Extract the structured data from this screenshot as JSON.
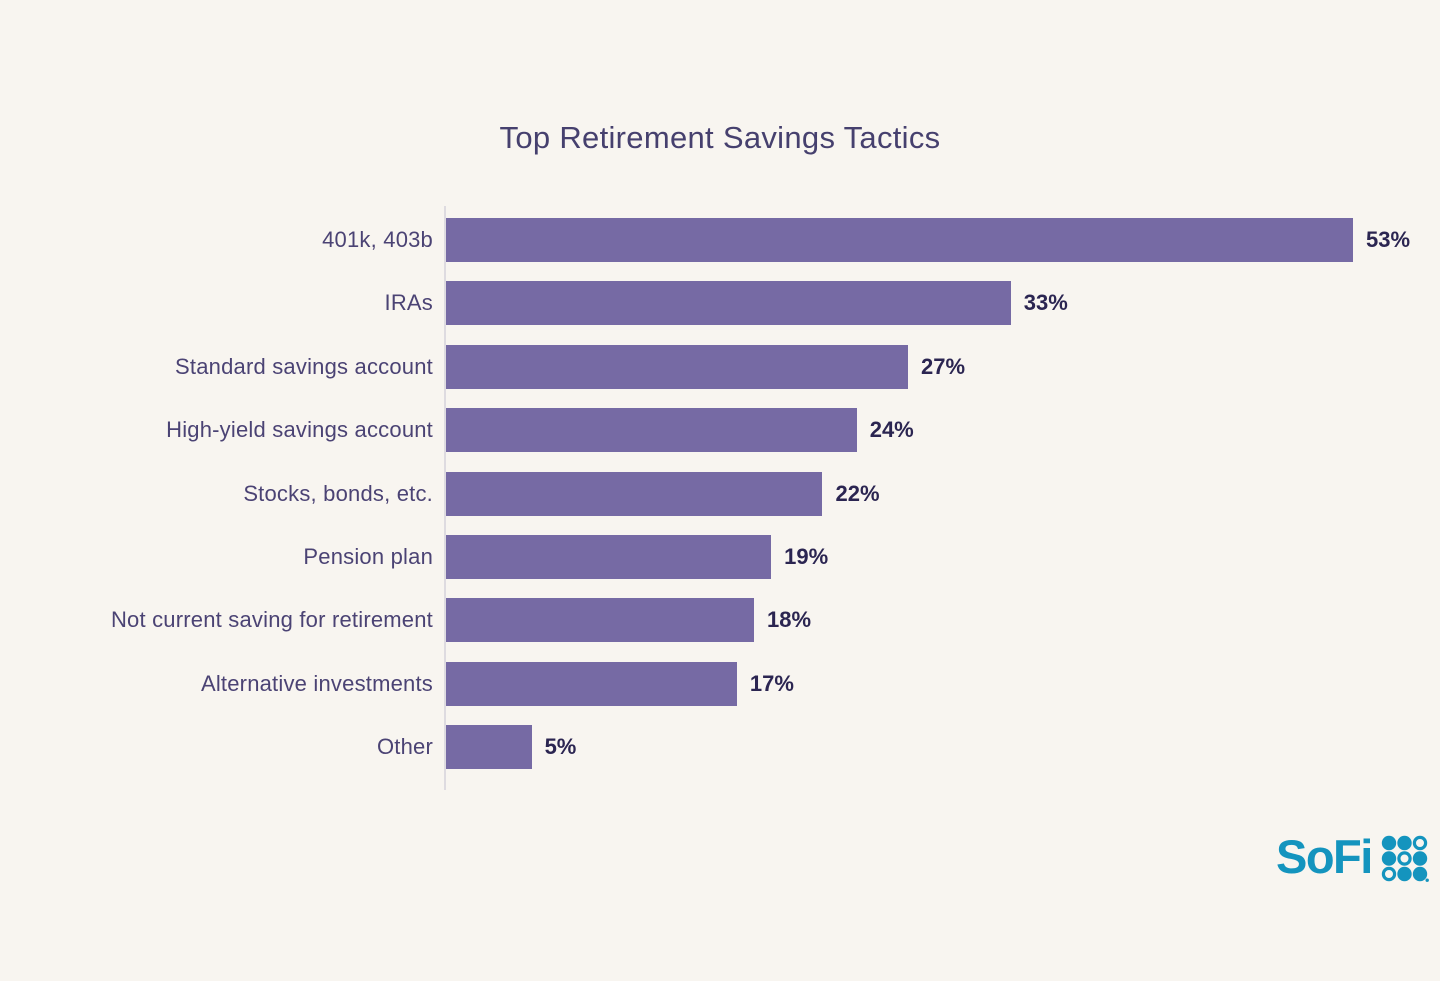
{
  "chart_data": {
    "type": "bar",
    "orientation": "horizontal",
    "title": "Top Retirement Savings Tactics",
    "categories": [
      "401k, 403b",
      "IRAs",
      "Standard savings account",
      "High-yield savings account",
      "Stocks, bonds, etc.",
      "Pension plan",
      "Not current saving for retirement",
      "Alternative investments",
      "Other"
    ],
    "values": [
      53,
      33,
      27,
      24,
      22,
      19,
      18,
      17,
      5
    ],
    "value_suffix": "%",
    "xlim": [
      0,
      55
    ],
    "grid": false,
    "legend": "none",
    "xlabel": "",
    "ylabel": ""
  },
  "branding": {
    "logo_text": "SoFi",
    "logo_dot_pattern": [
      "filled",
      "filled",
      "outline",
      "filled",
      "outline",
      "filled",
      "outline",
      "filled",
      "filled"
    ],
    "logo_period_dot": true
  },
  "colors": {
    "background": "#f8f5f0",
    "bar": "#766aa4",
    "title_text": "#46406e",
    "label_text": "#4b4374",
    "value_text": "#2b2551",
    "axis_line": "#dedbe0",
    "logo": "#1494be"
  }
}
